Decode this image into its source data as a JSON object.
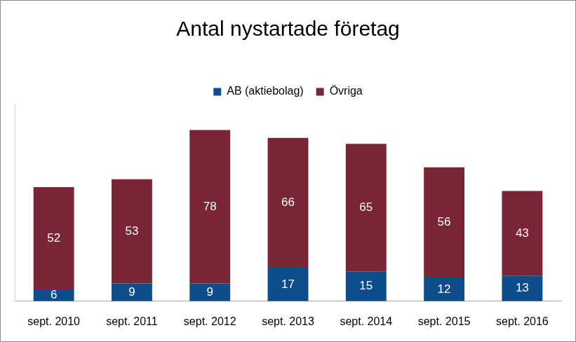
{
  "chart_data": {
    "type": "bar",
    "title": "Antal nystartade företag",
    "categories": [
      "sept. 2010",
      "sept. 2011",
      "sept. 2012",
      "sept. 2013",
      "sept. 2014",
      "sept. 2015",
      "sept. 2016"
    ],
    "series": [
      {
        "name": "AB (aktiebolag)",
        "color": "#0e4d8c",
        "values": [
          6,
          9,
          9,
          17,
          15,
          12,
          13
        ]
      },
      {
        "name": "Övriga",
        "color": "#7a2536",
        "values": [
          52,
          53,
          78,
          66,
          65,
          56,
          43
        ]
      }
    ],
    "stacked": true,
    "data_labels": true,
    "legend": "top",
    "grid": false,
    "tick_labels": "x",
    "ylim": [
      0,
      100
    ]
  }
}
